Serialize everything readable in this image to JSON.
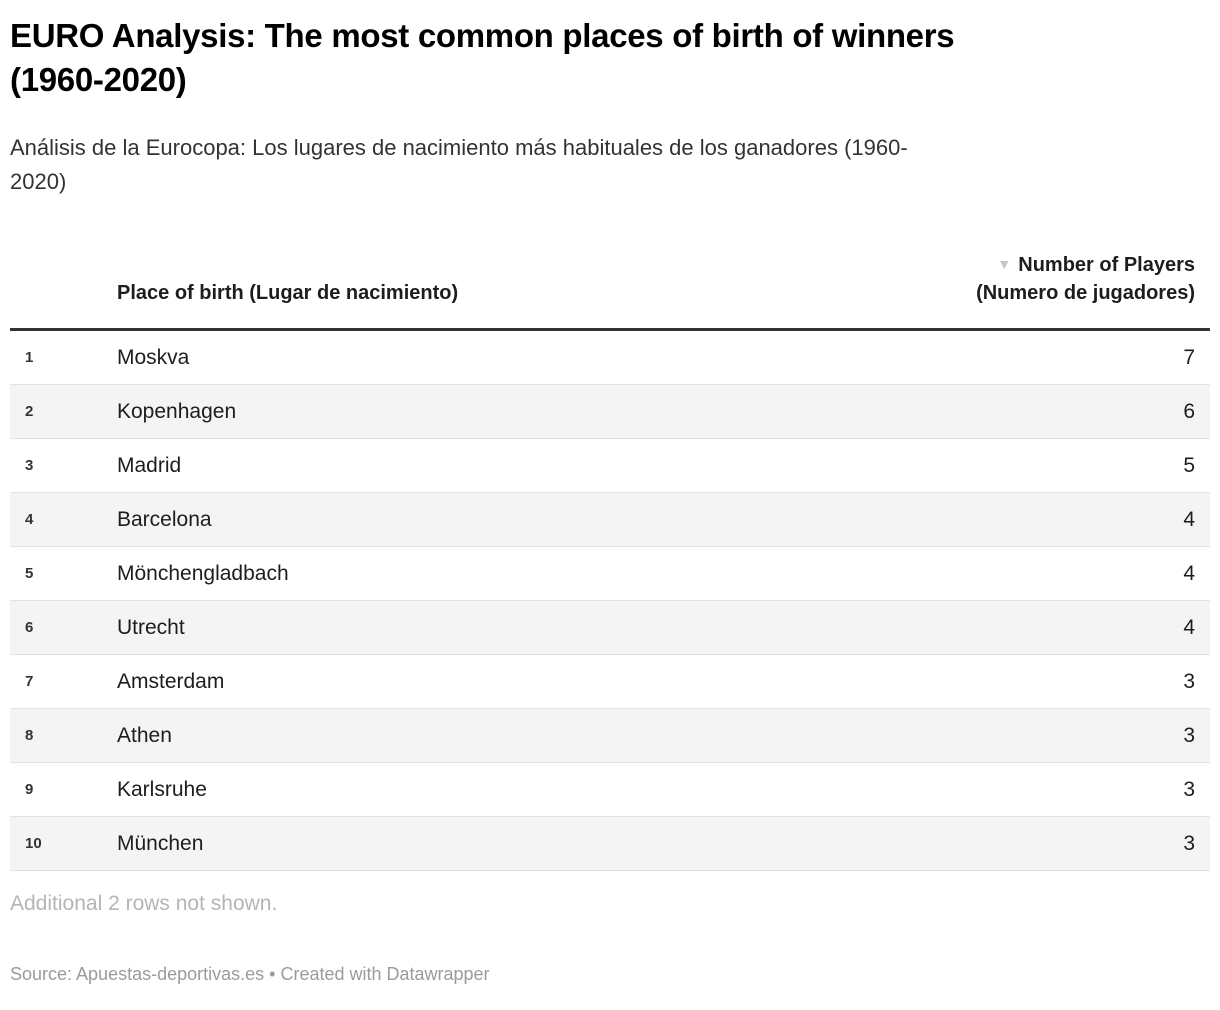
{
  "header": {
    "title_lines": [
      "EURO Analysis: The most common places of birth of winners",
      "(1960-2020)"
    ],
    "subtitle_lines": [
      "Análisis de la Eurocopa: Los lugares de nacimiento más habituales de los ganadores (1960-",
      "2020)"
    ]
  },
  "table": {
    "columns": {
      "place_label": "Place of birth (Lugar de nacimiento)",
      "players_label_line1": "Number of Players",
      "players_label_line2": "(Numero de jugadores)",
      "sort_icon_glyph": "▼"
    },
    "rows": [
      {
        "rank": "1",
        "place": "Moskva",
        "players": "7"
      },
      {
        "rank": "2",
        "place": "Kopenhagen",
        "players": "6"
      },
      {
        "rank": "3",
        "place": "Madrid",
        "players": "5"
      },
      {
        "rank": "4",
        "place": "Barcelona",
        "players": "4"
      },
      {
        "rank": "5",
        "place": "Mönchengladbach",
        "players": "4"
      },
      {
        "rank": "6",
        "place": "Utrecht",
        "players": "4"
      },
      {
        "rank": "7",
        "place": "Amsterdam",
        "players": "3"
      },
      {
        "rank": "8",
        "place": "Athen",
        "players": "3"
      },
      {
        "rank": "9",
        "place": "Karlsruhe",
        "players": "3"
      },
      {
        "rank": "10",
        "place": "München",
        "players": "3"
      }
    ],
    "note": "Additional 2 rows not shown."
  },
  "footer": {
    "source": "Source: Apuestas-deportivas.es • Created with Datawrapper"
  },
  "colors": {
    "title_text": "#000000",
    "subtitle_text": "#333333",
    "header_text": "#1d1d1d",
    "body_text": "#1d1d1d",
    "rank_text": "#333333",
    "rule": "#333333",
    "row_border": "#e1e1e1",
    "row_alt_bg": "#f4f4f4",
    "sort_icon": "#c6c6c6",
    "note_text": "#b5b5b5",
    "source_text": "#9b9b9b"
  },
  "chart_data": {
    "type": "table",
    "title": "EURO Analysis: The most common places of birth of winners (1960-2020)",
    "subtitle": "Análisis de la Eurocopa: Los lugares de nacimiento más habituales de los ganadores (1960-2020)",
    "columns": [
      "Rank",
      "Place of birth (Lugar de nacimiento)",
      "Number of Players (Numero de jugadores)"
    ],
    "sorted_by": "Number of Players (Numero de jugadores)",
    "sort_direction": "descending",
    "categories": [
      "Moskva",
      "Kopenhagen",
      "Madrid",
      "Barcelona",
      "Mönchengladbach",
      "Utrecht",
      "Amsterdam",
      "Athen",
      "Karlsruhe",
      "München"
    ],
    "values": [
      7,
      6,
      5,
      4,
      4,
      4,
      3,
      3,
      3,
      3
    ],
    "note": "Additional 2 rows not shown.",
    "source": "Source: Apuestas-deportivas.es • Created with Datawrapper"
  }
}
